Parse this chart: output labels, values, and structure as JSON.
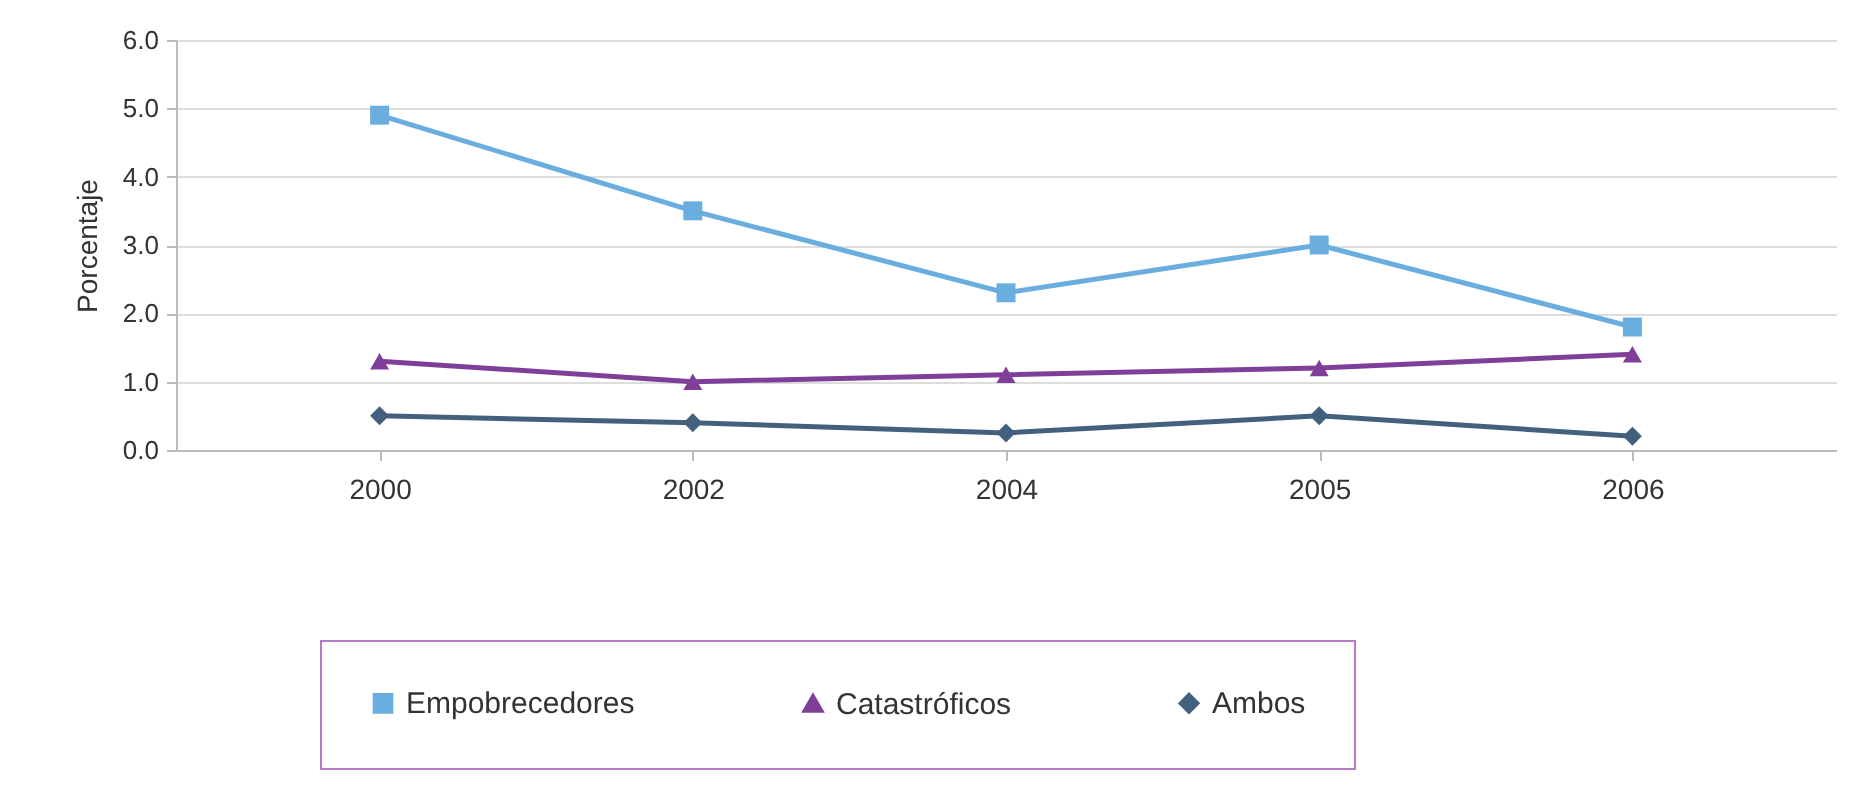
{
  "chart_data": {
    "type": "line",
    "ylabel": "Porcentaje",
    "categories": [
      "2000",
      "2002",
      "2004",
      "2005",
      "2006"
    ],
    "series": [
      {
        "name": "Empobrecedores",
        "color": "#6aaee0",
        "marker": "square",
        "values": [
          4.9,
          3.5,
          2.3,
          3.0,
          1.8
        ]
      },
      {
        "name": "Catastróficos",
        "color": "#7f3f98",
        "marker": "triangle",
        "values": [
          1.3,
          1.0,
          1.1,
          1.2,
          1.4
        ]
      },
      {
        "name": "Ambos",
        "color": "#44607f",
        "marker": "diamond",
        "values": [
          0.5,
          0.4,
          0.25,
          0.5,
          0.2
        ]
      }
    ],
    "ylim": [
      0,
      6
    ],
    "yticks": [
      {
        "value": 0,
        "label": "0.0"
      },
      {
        "value": 1,
        "label": "1.0"
      },
      {
        "value": 2,
        "label": "2.0"
      },
      {
        "value": 3,
        "label": "3.0"
      },
      {
        "value": 4,
        "label": "4.0"
      },
      {
        "value": 5,
        "label": "5.0"
      },
      {
        "value": 6,
        "label": "6.0"
      }
    ],
    "grid": "y",
    "legend": "bottom",
    "line_style": "solid"
  }
}
